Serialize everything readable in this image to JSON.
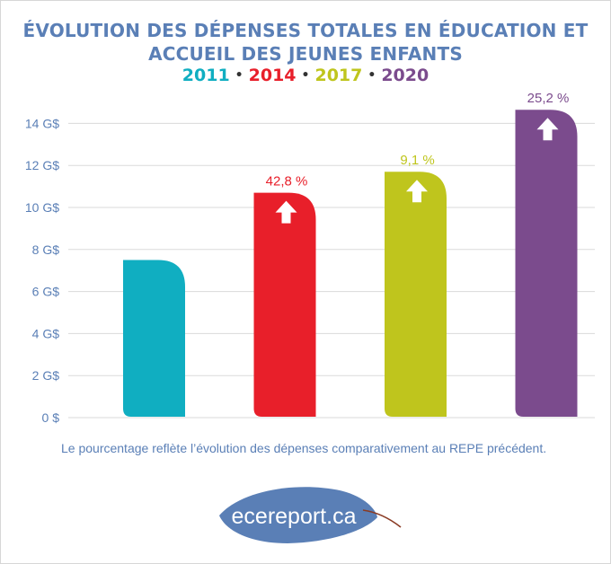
{
  "title_line1": "ÉVOLUTION DES DÉPENSES TOTALES EN ÉDUCATION ET",
  "title_line2": "ACCUEIL DES JEUNES ENFANTS",
  "years_legend": [
    {
      "label": "2011",
      "color": "#10aec1"
    },
    {
      "label": "2014",
      "color": "#e81f2a"
    },
    {
      "label": "2017",
      "color": "#bfc51d"
    },
    {
      "label": "2020",
      "color": "#7b4b8d"
    }
  ],
  "legend_separator": "•",
  "note": "Le pourcentage reflète l’évolution des dépenses comparativement au REPE précédent.",
  "logo_text": "ecereport.ca",
  "chart_data": {
    "type": "bar",
    "categories": [
      "2011",
      "2014",
      "2017",
      "2020"
    ],
    "values": [
      7.5,
      10.7,
      11.7,
      14.65
    ],
    "unit": "G$",
    "ylim": [
      0,
      14.8
    ],
    "yticks": [
      0,
      2,
      4,
      6,
      8,
      10,
      12,
      14
    ],
    "ytick_labels": [
      "0 $",
      "2 G$",
      "4 G$",
      "6 G$",
      "8 G$",
      "10 G$",
      "12 G$",
      "14 G$"
    ],
    "change_labels": [
      "",
      "42,8 %",
      "9,1 %",
      "25,2 %"
    ],
    "colors": [
      "#10aec1",
      "#e81f2a",
      "#bfc51d",
      "#7b4b8d"
    ],
    "grid": true,
    "up_arrow_icons": [
      false,
      true,
      true,
      true
    ]
  }
}
